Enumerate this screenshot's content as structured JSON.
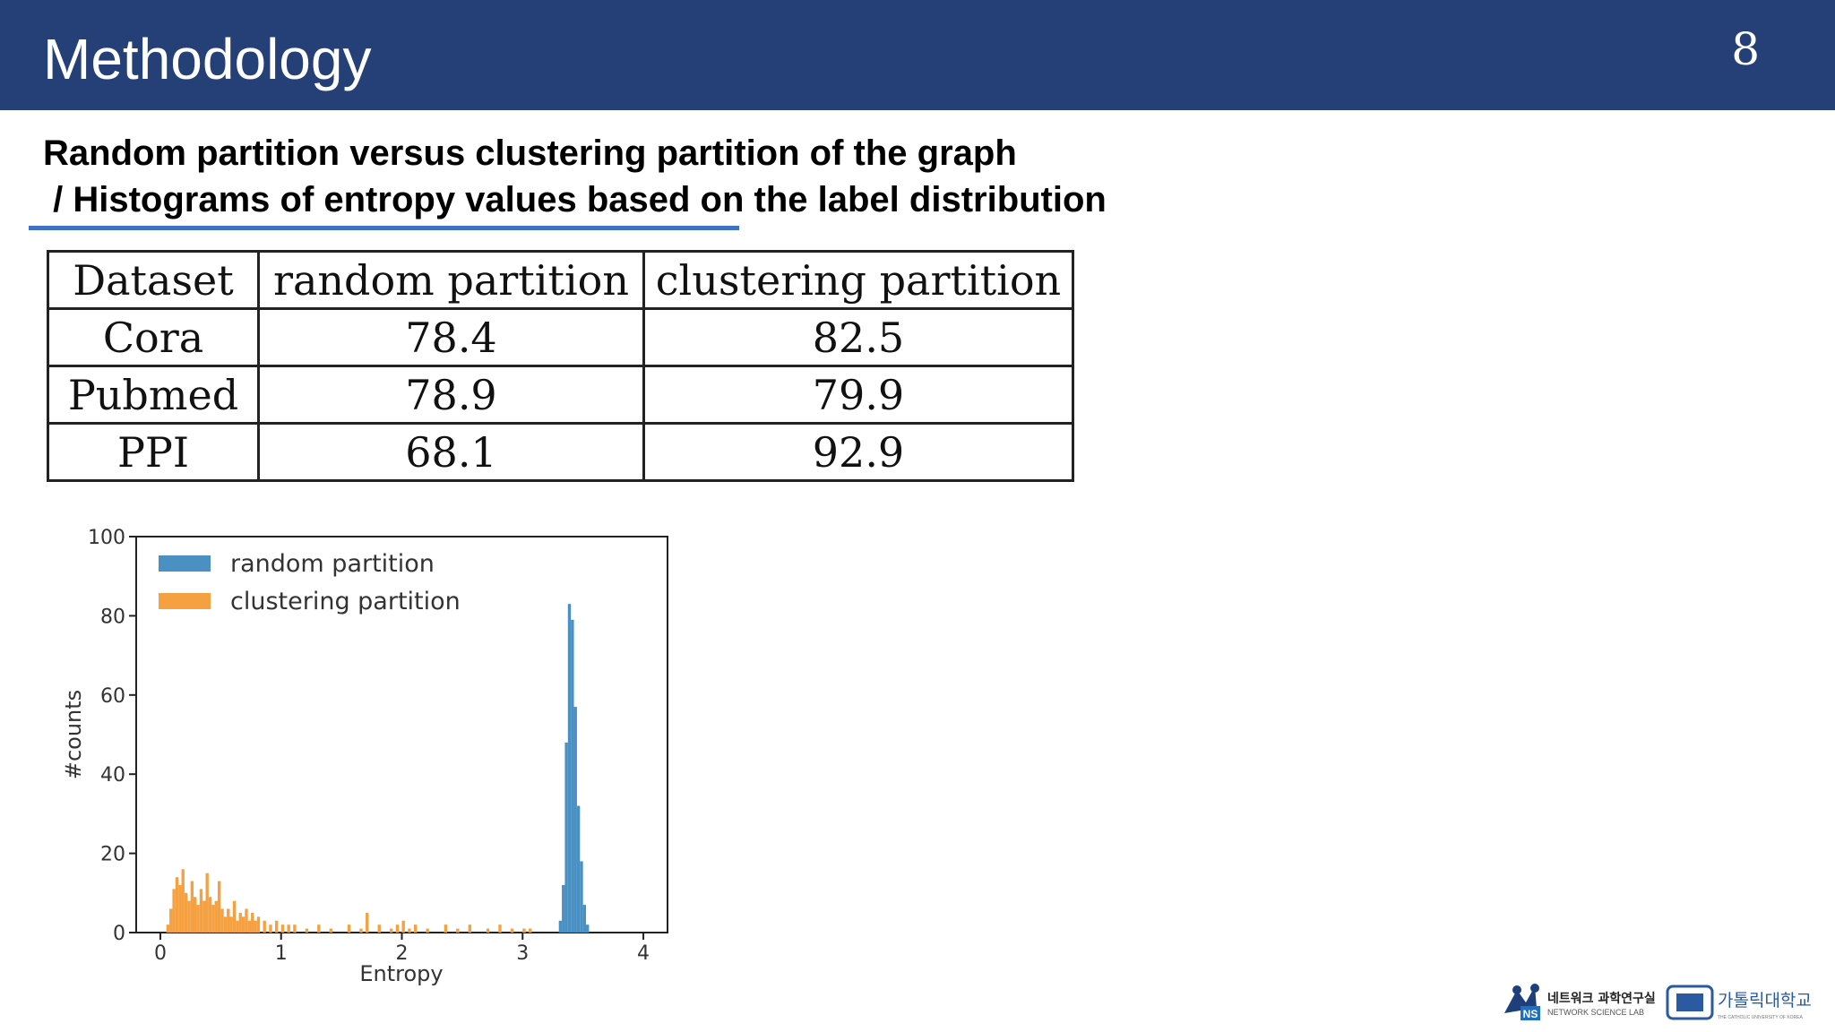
{
  "header": {
    "title": "Methodology",
    "page_number": "8"
  },
  "subtitle": {
    "line1": "Random partition versus clustering partition of the graph",
    "line2": " / Histograms of entropy values based on the label distribution"
  },
  "table": {
    "headers": [
      "Dataset",
      "random partition",
      "clustering partition"
    ],
    "rows": [
      [
        "Cora",
        "78.4",
        "82.5"
      ],
      [
        "Pubmed",
        "78.9",
        "79.9"
      ],
      [
        "PPI",
        "68.1",
        "92.9"
      ]
    ]
  },
  "chart_data": {
    "type": "bar",
    "xlabel": "Entropy",
    "ylabel": "#counts",
    "xlim": [
      -0.2,
      4.2
    ],
    "ylim": [
      0,
      100
    ],
    "xticks": [
      "0",
      "1",
      "2",
      "3",
      "4"
    ],
    "yticks": [
      "0",
      "20",
      "40",
      "60",
      "80",
      "100"
    ],
    "legend_position": "top-left",
    "bin_width": 0.025,
    "series": [
      {
        "name": "random partition",
        "color": "#4a90c2",
        "x": [
          3.3,
          3.325,
          3.35,
          3.375,
          3.4,
          3.425,
          3.45,
          3.475,
          3.5,
          3.525
        ],
        "values": [
          3,
          12,
          48,
          83,
          79,
          57,
          32,
          18,
          7,
          2
        ]
      },
      {
        "name": "clustering partition",
        "color": "#f5a142",
        "x": [
          0.05,
          0.075,
          0.1,
          0.125,
          0.15,
          0.175,
          0.2,
          0.225,
          0.25,
          0.275,
          0.3,
          0.325,
          0.35,
          0.375,
          0.4,
          0.425,
          0.45,
          0.475,
          0.5,
          0.525,
          0.55,
          0.575,
          0.6,
          0.625,
          0.65,
          0.675,
          0.7,
          0.725,
          0.75,
          0.775,
          0.8,
          0.85,
          0.9,
          0.95,
          1.0,
          1.05,
          1.1,
          1.2,
          1.3,
          1.4,
          1.55,
          1.65,
          1.7,
          1.8,
          1.9,
          1.95,
          2.0,
          2.05,
          2.1,
          2.2,
          2.35,
          2.45,
          2.55,
          2.7,
          2.8,
          2.9,
          3.0,
          3.05
        ],
        "values": [
          2,
          6,
          11,
          14,
          12,
          16,
          10,
          8,
          13,
          9,
          7,
          11,
          8,
          15,
          9,
          7,
          8,
          13,
          6,
          4,
          6,
          4,
          8,
          3,
          5,
          4,
          6,
          3,
          5,
          3,
          4,
          3,
          2,
          3,
          2,
          2,
          2,
          1,
          2,
          1,
          2,
          1,
          5,
          2,
          1,
          2,
          3,
          1,
          2,
          1,
          2,
          1,
          2,
          1,
          2,
          1,
          1,
          1
        ]
      }
    ]
  },
  "logos": {
    "nslab_name_ko": "네트워크 과학연구실",
    "nslab_name_en": "NETWORK SCIENCE LAB",
    "nslab_badge": "NS",
    "university_name_ko": "가톨릭대학교",
    "university_name_en": "THE CATHOLIC UNIVERSITY OF KOREA"
  }
}
